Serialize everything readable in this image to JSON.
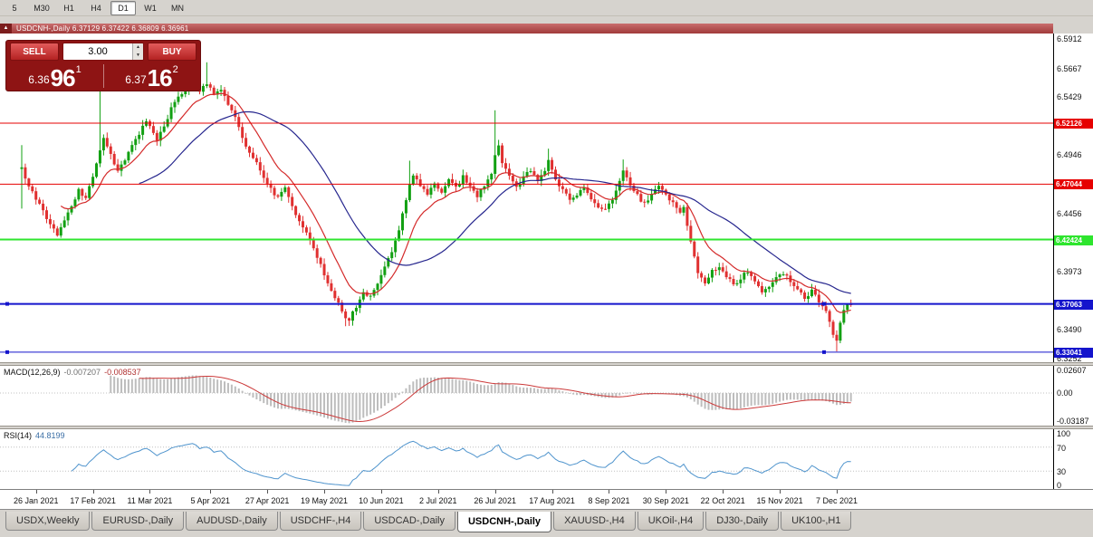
{
  "toolbar": {
    "timeframes": [
      {
        "label": "5",
        "active": false
      },
      {
        "label": "M30",
        "active": false
      },
      {
        "label": "H1",
        "active": false
      },
      {
        "label": "H4",
        "active": false
      },
      {
        "label": "D1",
        "active": true
      },
      {
        "label": "W1",
        "active": false
      },
      {
        "label": "MN",
        "active": false
      }
    ]
  },
  "titlebar": {
    "collapse_icon": "▲",
    "text": "USDCNH-,Daily 6.37129 6.37422 6.36809 6.36961"
  },
  "trade_panel": {
    "sell_label": "SELL",
    "buy_label": "BUY",
    "volume": "3.00",
    "spin_up_icon": "▲",
    "spin_down_icon": "▼",
    "sell_price": {
      "prefix": "6.36",
      "big": "96",
      "sup": "1"
    },
    "buy_price": {
      "prefix": "6.37",
      "big": "16",
      "sup": "2"
    }
  },
  "chart_data": {
    "type": "candlestick",
    "symbol": "USDCNH-",
    "timeframe": "Daily",
    "ohlc_header": {
      "open": "6.37129",
      "high": "6.37422",
      "low": "6.36809",
      "close": "6.36961"
    },
    "bars": 234,
    "candles": {
      "up_color": "#12a012",
      "down_color": "#e03030"
    },
    "y_axis": {
      "min": 6.322,
      "max": 6.596,
      "ticks": [
        6.5912,
        6.5667,
        6.5429,
        6.519,
        6.4946,
        6.4456,
        6.3973,
        6.349,
        6.3252
      ]
    },
    "levels": [
      {
        "price": 6.52126,
        "badge": "6.52126",
        "color": "#e60000",
        "width": 1,
        "markers": false
      },
      {
        "price": 6.47044,
        "badge": "6.47044",
        "color": "#e60000",
        "width": 1,
        "markers": false
      },
      {
        "price": 6.42424,
        "badge": "6.42424",
        "color": "#2ee52e",
        "width": 2,
        "markers": false
      },
      {
        "price": 6.37063,
        "badge": "6.37063",
        "color": "#1414cc",
        "width": 2,
        "markers": true
      },
      {
        "price": 6.33041,
        "badge": "6.33041",
        "color": "#1414cc",
        "width": 1,
        "markers": true
      }
    ],
    "ma": [
      {
        "type": "ema",
        "period": 12,
        "color": "#d42a2a"
      },
      {
        "type": "sma",
        "period": 34,
        "color": "#26268e"
      }
    ],
    "x_labels": [
      {
        "i": 4,
        "label": "26 Jan 2021"
      },
      {
        "i": 20,
        "label": "17 Feb 2021"
      },
      {
        "i": 36,
        "label": "11 Mar 2021"
      },
      {
        "i": 53,
        "label": "5 Apr 2021"
      },
      {
        "i": 69,
        "label": "27 Apr 2021"
      },
      {
        "i": 85,
        "label": "19 May 2021"
      },
      {
        "i": 101,
        "label": "10 Jun 2021"
      },
      {
        "i": 117,
        "label": "2 Jul 2021"
      },
      {
        "i": 133,
        "label": "26 Jul 2021"
      },
      {
        "i": 149,
        "label": "17 Aug 2021"
      },
      {
        "i": 165,
        "label": "8 Sep 2021"
      },
      {
        "i": 181,
        "label": "30 Sep 2021"
      },
      {
        "i": 197,
        "label": "22 Oct 2021"
      },
      {
        "i": 213,
        "label": "15 Nov 2021"
      },
      {
        "i": 229,
        "label": "7 Dec 2021"
      }
    ],
    "anchors": [
      [
        0,
        6.483
      ],
      [
        2,
        6.468
      ],
      [
        4,
        6.458
      ],
      [
        6,
        6.447
      ],
      [
        8,
        6.437
      ],
      [
        10,
        6.429
      ],
      [
        12,
        6.441
      ],
      [
        14,
        6.452
      ],
      [
        16,
        6.465
      ],
      [
        18,
        6.459
      ],
      [
        20,
        6.476
      ],
      [
        22,
        6.499
      ],
      [
        23,
        6.509
      ],
      [
        25,
        6.494
      ],
      [
        27,
        6.481
      ],
      [
        29,
        6.491
      ],
      [
        31,
        6.503
      ],
      [
        33,
        6.513
      ],
      [
        35,
        6.523
      ],
      [
        36,
        6.519
      ],
      [
        38,
        6.508
      ],
      [
        40,
        6.519
      ],
      [
        42,
        6.533
      ],
      [
        44,
        6.543
      ],
      [
        46,
        6.551
      ],
      [
        48,
        6.557
      ],
      [
        50,
        6.549
      ],
      [
        52,
        6.555
      ],
      [
        54,
        6.546
      ],
      [
        56,
        6.55
      ],
      [
        58,
        6.538
      ],
      [
        60,
        6.526
      ],
      [
        62,
        6.509
      ],
      [
        64,
        6.497
      ],
      [
        66,
        6.487
      ],
      [
        68,
        6.477
      ],
      [
        70,
        6.466
      ],
      [
        72,
        6.459
      ],
      [
        74,
        6.468
      ],
      [
        76,
        6.452
      ],
      [
        78,
        6.438
      ],
      [
        80,
        6.429
      ],
      [
        82,
        6.417
      ],
      [
        84,
        6.403
      ],
      [
        86,
        6.389
      ],
      [
        88,
        6.377
      ],
      [
        90,
        6.364
      ],
      [
        92,
        6.357
      ],
      [
        94,
        6.369
      ],
      [
        96,
        6.381
      ],
      [
        98,
        6.377
      ],
      [
        100,
        6.388
      ],
      [
        102,
        6.401
      ],
      [
        104,
        6.414
      ],
      [
        106,
        6.433
      ],
      [
        108,
        6.458
      ],
      [
        110,
        6.479
      ],
      [
        112,
        6.469
      ],
      [
        114,
        6.461
      ],
      [
        116,
        6.471
      ],
      [
        118,
        6.464
      ],
      [
        120,
        6.474
      ],
      [
        122,
        6.467
      ],
      [
        124,
        6.477
      ],
      [
        126,
        6.469
      ],
      [
        128,
        6.461
      ],
      [
        130,
        6.469
      ],
      [
        132,
        6.479
      ],
      [
        133,
        6.496
      ],
      [
        134,
        6.504
      ],
      [
        135,
        6.487
      ],
      [
        137,
        6.477
      ],
      [
        139,
        6.467
      ],
      [
        141,
        6.477
      ],
      [
        143,
        6.481
      ],
      [
        145,
        6.474
      ],
      [
        147,
        6.481
      ],
      [
        148,
        6.49
      ],
      [
        150,
        6.473
      ],
      [
        152,
        6.465
      ],
      [
        154,
        6.457
      ],
      [
        156,
        6.462
      ],
      [
        158,
        6.468
      ],
      [
        160,
        6.459
      ],
      [
        162,
        6.451
      ],
      [
        164,
        6.448
      ],
      [
        166,
        6.459
      ],
      [
        168,
        6.472
      ],
      [
        169,
        6.482
      ],
      [
        171,
        6.469
      ],
      [
        173,
        6.461
      ],
      [
        175,
        6.454
      ],
      [
        177,
        6.461
      ],
      [
        179,
        6.469
      ],
      [
        181,
        6.461
      ],
      [
        183,
        6.454
      ],
      [
        185,
        6.447
      ],
      [
        186,
        6.451
      ],
      [
        188,
        6.421
      ],
      [
        190,
        6.396
      ],
      [
        192,
        6.389
      ],
      [
        194,
        6.398
      ],
      [
        196,
        6.402
      ],
      [
        198,
        6.394
      ],
      [
        200,
        6.387
      ],
      [
        202,
        6.392
      ],
      [
        204,
        6.398
      ],
      [
        206,
        6.39
      ],
      [
        208,
        6.382
      ],
      [
        210,
        6.386
      ],
      [
        212,
        6.392
      ],
      [
        214,
        6.397
      ],
      [
        216,
        6.39
      ],
      [
        218,
        6.382
      ],
      [
        220,
        6.376
      ],
      [
        222,
        6.381
      ],
      [
        224,
        6.372
      ],
      [
        226,
        6.363
      ],
      [
        228,
        6.345
      ],
      [
        229,
        6.34
      ],
      [
        230,
        6.354
      ],
      [
        231,
        6.366
      ],
      [
        232,
        6.371
      ],
      [
        233,
        6.3696
      ]
    ],
    "wicks": [
      [
        0,
        "h",
        6.503
      ],
      [
        0,
        "l",
        6.45
      ],
      [
        22,
        "h",
        6.549
      ],
      [
        52,
        "h",
        6.572
      ],
      [
        91,
        "l",
        6.352
      ],
      [
        109,
        "h",
        6.49
      ],
      [
        133,
        "h",
        6.532
      ],
      [
        148,
        "h",
        6.5
      ],
      [
        169,
        "h",
        6.491
      ],
      [
        229,
        "l",
        6.331
      ]
    ],
    "indicators": {
      "macd": {
        "label": "MACD(12,26,9)",
        "value1": "-0.007207",
        "value2": "-0.008537",
        "range": [
          -0.0355,
          0.0295
        ],
        "ticks": [
          {
            "v": 0.02607,
            "t": "0.02607"
          },
          {
            "v": 0,
            "t": "0.00"
          },
          {
            "v": -0.03187,
            "t": "-0.03187"
          }
        ],
        "hist_color": "#bdbdbd",
        "signal_color": "#cc3a3a",
        "zero_color": "#c0c0c0"
      },
      "rsi": {
        "label": "RSI(14)",
        "value": "44.8199",
        "ticks": [
          100,
          70,
          30,
          0
        ],
        "levels": [
          70,
          30
        ],
        "color": "#4f94cd",
        "level_color": "#c0c0c0"
      }
    }
  },
  "tabs": [
    {
      "label": "USDX,Weekly",
      "active": false
    },
    {
      "label": "EURUSD-,Daily",
      "active": false
    },
    {
      "label": "AUDUSD-,Daily",
      "active": false
    },
    {
      "label": "USDCHF-,H4",
      "active": false
    },
    {
      "label": "USDCAD-,Daily",
      "active": false
    },
    {
      "label": "USDCNH-,Daily",
      "active": true
    },
    {
      "label": "XAUUSD-,H4",
      "active": false
    },
    {
      "label": "UKOil-,H4",
      "active": false
    },
    {
      "label": "DJ30-,Daily",
      "active": false
    },
    {
      "label": "UK100-,H1",
      "active": false
    }
  ]
}
